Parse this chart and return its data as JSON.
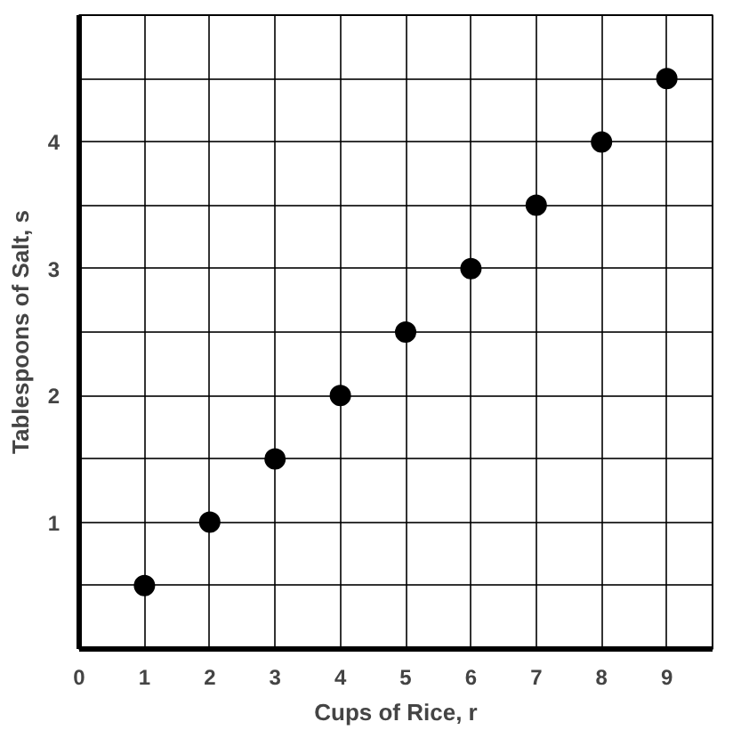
{
  "chart_data": {
    "type": "scatter",
    "xlabel": "Cups of Rice, r",
    "ylabel": "Tablespoons of Salt, s",
    "x": [
      1,
      2,
      3,
      4,
      5,
      6,
      7,
      8,
      9
    ],
    "series": [
      {
        "color": "#000000",
        "values": [
          0.5,
          1,
          1.5,
          2,
          2.5,
          3,
          3.5,
          4,
          4.5
        ]
      }
    ],
    "xlim": [
      0,
      9.7
    ],
    "ylim": [
      0,
      5
    ],
    "xticks": [
      0,
      1,
      2,
      3,
      4,
      5,
      6,
      7,
      8,
      9
    ],
    "yticks": [
      {
        "value": 0,
        "label": null
      },
      {
        "value": 0.5,
        "label": null
      },
      1,
      {
        "value": 1.5,
        "label": null
      },
      2,
      {
        "value": 2.5,
        "label": null
      },
      3,
      {
        "value": 3.5,
        "label": null
      },
      4,
      {
        "value": 4.5,
        "label": null
      }
    ],
    "grid": true,
    "marker": "circle"
  }
}
